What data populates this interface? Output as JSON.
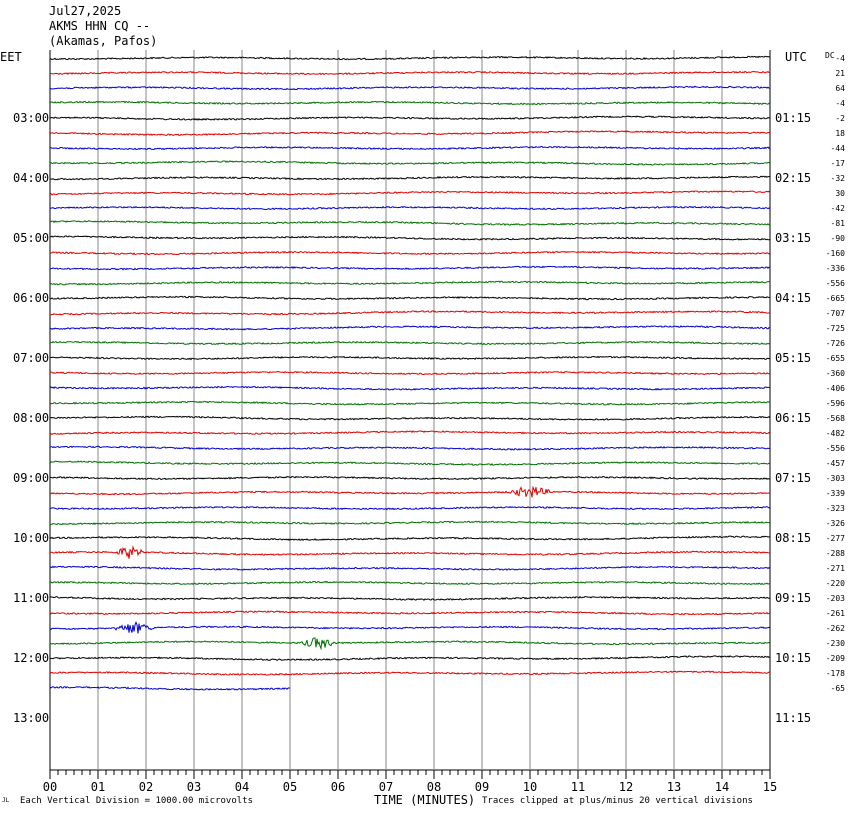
{
  "header": {
    "date": "Jul27,2025",
    "station": "AKMS HHN CQ --",
    "location": "(Akamas, Pafos)"
  },
  "left_zone_label": "EET",
  "right_zone_label": "UTC",
  "dc_label": "DC",
  "footer": {
    "mark": "JL",
    "scale_note": "Each Vertical Division = 1000.00 microvolts",
    "x_title": "TIME (MINUTES)",
    "clip_note": "Traces clipped at plus/minus 20 vertical divisions"
  },
  "chart_data": {
    "type": "line",
    "title": "AKMS HHN CQ -- (Akamas, Pafos) Jul27,2025",
    "xlabel": "TIME (MINUTES)",
    "xlim": [
      0,
      15
    ],
    "x_ticks": [
      "00",
      "01",
      "02",
      "03",
      "04",
      "05",
      "06",
      "07",
      "08",
      "09",
      "10",
      "11",
      "12",
      "13",
      "14",
      "15"
    ],
    "left_hour_labels": [
      "03:00",
      "04:00",
      "05:00",
      "06:00",
      "07:00",
      "08:00",
      "09:00",
      "10:00",
      "11:00",
      "12:00",
      "13:00"
    ],
    "right_hour_labels": [
      "01:15",
      "02:15",
      "03:15",
      "04:15",
      "05:15",
      "06:15",
      "07:15",
      "08:15",
      "09:15",
      "10:15",
      "11:15"
    ],
    "trace_colors": [
      "#000000",
      "#e00000",
      "#0000d0",
      "#007000"
    ],
    "dc_offsets": [
      -4,
      21,
      64,
      -4,
      -2,
      18,
      -44,
      -17,
      -32,
      30,
      -42,
      -81,
      -90,
      -160,
      -336,
      -556,
      -665,
      -707,
      -725,
      -726,
      -655,
      -360,
      -406,
      -596,
      -568,
      -482,
      -556,
      -457,
      -303,
      -339,
      -323,
      -326,
      -277,
      -288,
      -271,
      -220,
      -203,
      -261,
      -262,
      -230,
      -209,
      -178,
      -65
    ],
    "events": [
      {
        "trace": 29,
        "start_min": 9.5,
        "end_min": 10.5,
        "amplitude": "small"
      },
      {
        "trace": 33,
        "start_min": 1.3,
        "end_min": 2.0,
        "amplitude": "small"
      },
      {
        "trace": 38,
        "start_min": 1.3,
        "end_min": 2.2,
        "amplitude": "small"
      },
      {
        "trace": 39,
        "start_min": 5.2,
        "end_min": 6.0,
        "amplitude": "small"
      }
    ],
    "last_trace_end_min": 5.0
  }
}
